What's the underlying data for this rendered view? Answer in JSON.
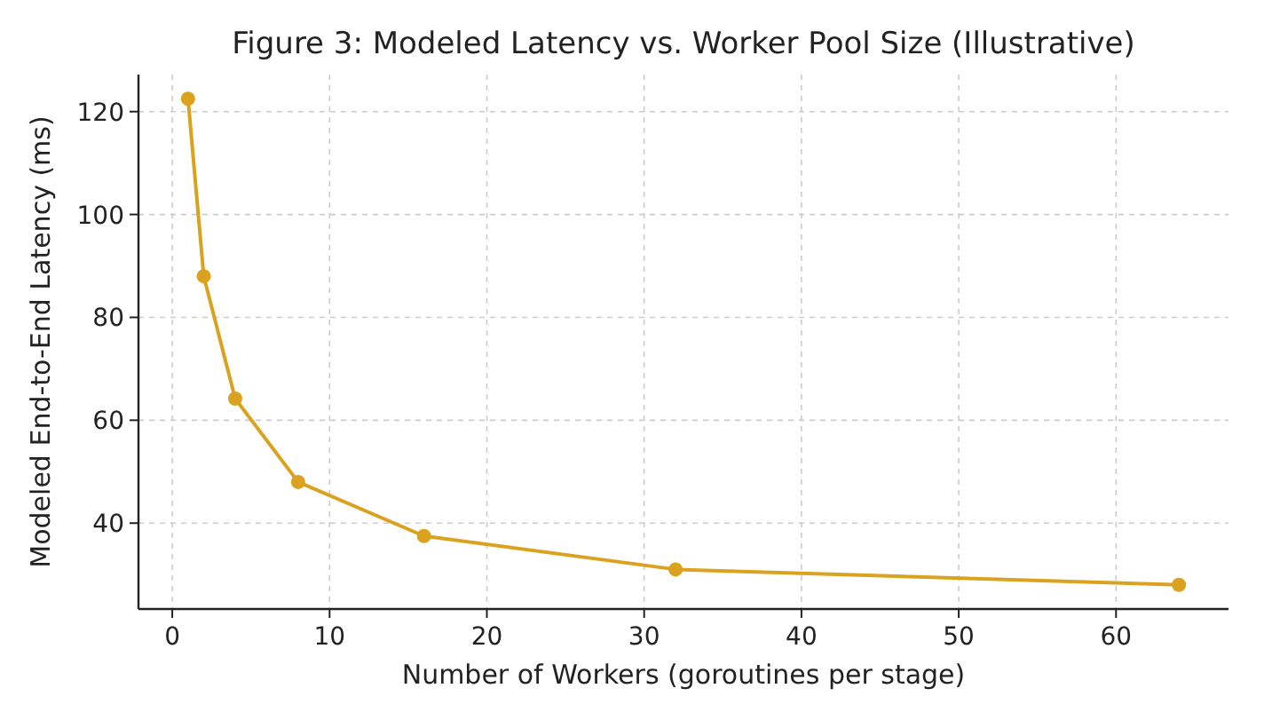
{
  "chart_data": {
    "type": "line",
    "title": "Figure 3: Modeled Latency vs. Worker Pool Size (Illustrative)",
    "xlabel": "Number of Workers (goroutines per stage)",
    "ylabel": "Modeled End-to-End Latency (ms)",
    "x": [
      1,
      2,
      4,
      8,
      16,
      32,
      64
    ],
    "series": [
      {
        "color": "#daa21e",
        "values": [
          122.5,
          88,
          64.2,
          48,
          37.5,
          31,
          28
        ]
      }
    ],
    "xlim": [
      -2.15,
      67.15
    ],
    "ylim": [
      23.3,
      127.2
    ],
    "xticks": [
      0,
      10,
      20,
      30,
      40,
      50,
      60
    ],
    "yticks": [
      40,
      60,
      80,
      100,
      120
    ],
    "grid": true,
    "marker": "circle",
    "line_style": "solid"
  }
}
